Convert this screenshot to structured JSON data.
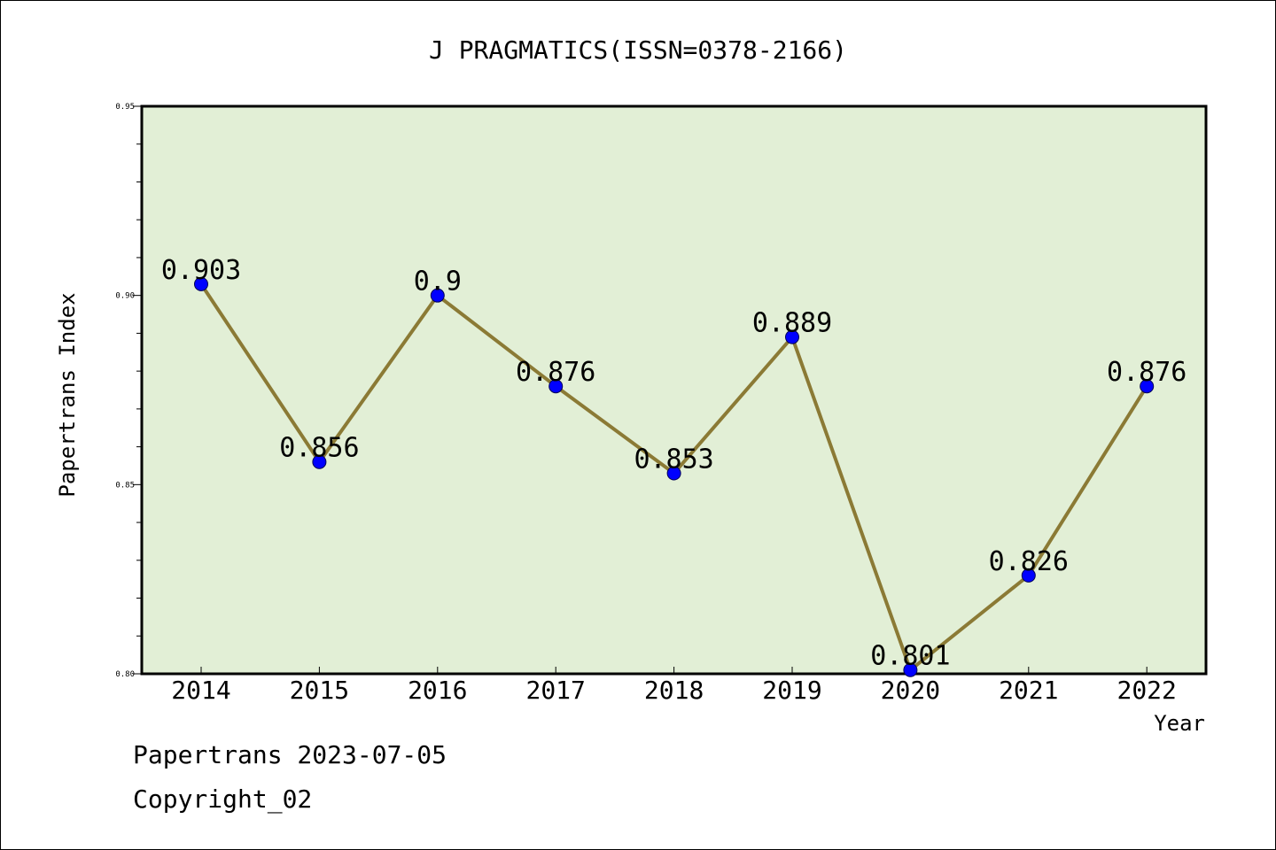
{
  "chart_data": {
    "type": "line",
    "title": "J PRAGMATICS(ISSN=0378-2166)",
    "xlabel": "Year",
    "ylabel": "Papertrans Index",
    "categories": [
      "2014",
      "2015",
      "2016",
      "2017",
      "2018",
      "2019",
      "2020",
      "2021",
      "2022"
    ],
    "series": [
      {
        "values": [
          0.903,
          0.856,
          0.9,
          0.876,
          0.853,
          0.889,
          0.801,
          0.826,
          0.876
        ],
        "data_labels": [
          "0.903",
          "0.856",
          "0.9",
          "0.876",
          "0.853",
          "0.889",
          "0.801",
          "0.826",
          "0.876"
        ]
      }
    ],
    "ylim": [
      0.8,
      0.95
    ],
    "yticks": [
      "0.80",
      "0.85",
      "0.90",
      "0.95"
    ],
    "grid": false,
    "legend": "none",
    "colors": {
      "plot_background": "#e2efd6",
      "line": "#8b7a35",
      "marker": "#0000ff"
    }
  },
  "footer": {
    "line1": "Papertrans 2023-07-05",
    "line2": "Copyright_02"
  }
}
